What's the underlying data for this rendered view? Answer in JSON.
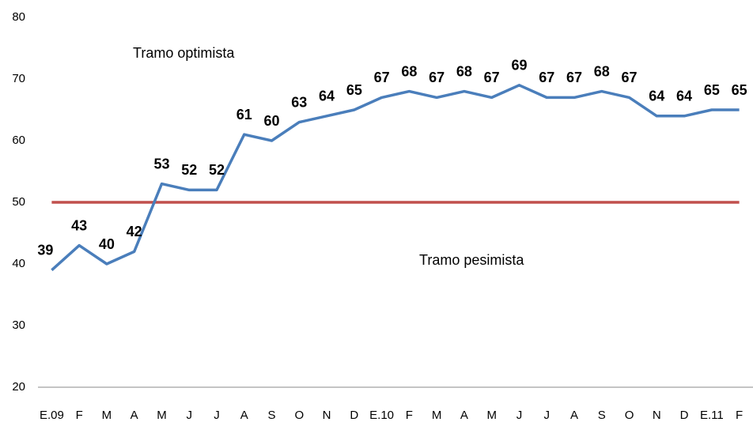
{
  "chart_data": {
    "type": "line",
    "categories": [
      "E.09",
      "F",
      "M",
      "A",
      "M",
      "J",
      "J",
      "A",
      "S",
      "O",
      "N",
      "D",
      "E.10",
      "F",
      "M",
      "A",
      "M",
      "J",
      "J",
      "A",
      "S",
      "O",
      "N",
      "D",
      "E.11",
      "F"
    ],
    "series": [
      {
        "color": "#4a7ebb",
        "values": [
          39,
          43,
          40,
          42,
          53,
          52,
          52,
          61,
          60,
          63,
          64,
          65,
          67,
          68,
          67,
          68,
          67,
          69,
          67,
          67,
          68,
          67,
          64,
          64,
          65,
          65
        ]
      }
    ],
    "reference_line": {
      "value": 50,
      "color": "#c0504d"
    },
    "annotations": [
      "Tramo optimista",
      "Tramo pesimista"
    ],
    "ylim": [
      20,
      80
    ],
    "yticks": [
      20,
      30,
      40,
      50,
      60,
      70,
      80
    ],
    "grid": false
  }
}
